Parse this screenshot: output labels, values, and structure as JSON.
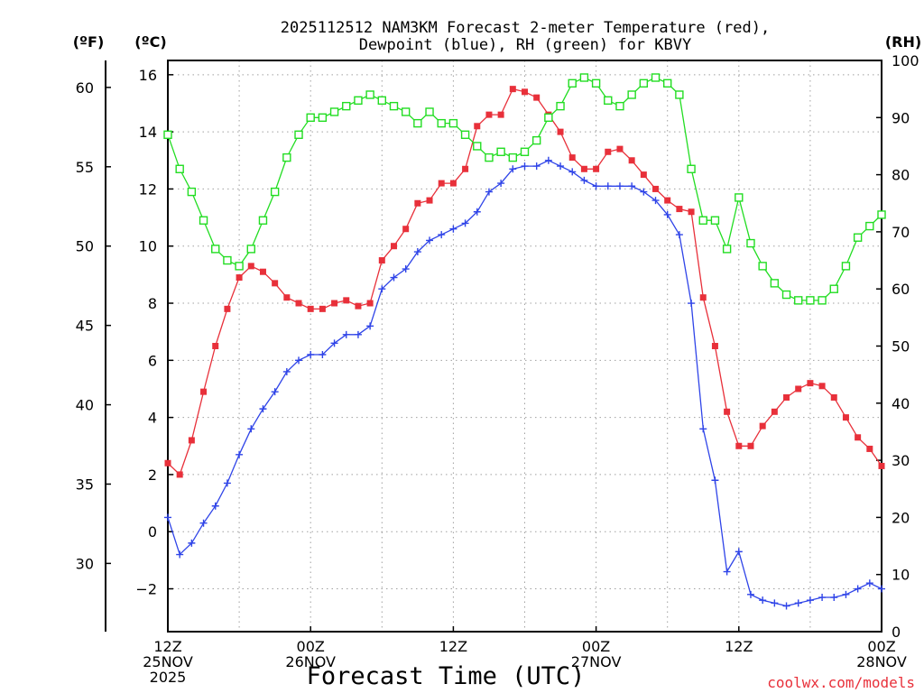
{
  "chart_data": {
    "type": "line",
    "title_lines": [
      "2025112512 NAM3KM Forecast 2-meter Temperature (red),",
      "Dewpoint (blue), RH (green) for KBVY"
    ],
    "xlabel": "Forecast Time (UTC)",
    "credit": "coolwx.com/models",
    "units": {
      "fahrenheit": "(ºF)",
      "celsius": "(ºC)",
      "rh": "(RH)"
    },
    "x_range_hours": [
      0,
      60
    ],
    "x_ticks": [
      {
        "hour": 0,
        "label_lines": [
          "12Z",
          "25NOV",
          "2025"
        ]
      },
      {
        "hour": 12,
        "label_lines": [
          "00Z",
          "26NOV"
        ]
      },
      {
        "hour": 24,
        "label_lines": [
          "12Z"
        ]
      },
      {
        "hour": 36,
        "label_lines": [
          "00Z",
          "27NOV"
        ]
      },
      {
        "hour": 48,
        "label_lines": [
          "12Z"
        ]
      },
      {
        "hour": 60,
        "label_lines": [
          "00Z",
          "28NOV"
        ]
      }
    ],
    "celsius_axis": {
      "range": [
        -3.5,
        16.5
      ],
      "ticks": [
        -2,
        0,
        2,
        4,
        6,
        8,
        10,
        12,
        14,
        16
      ],
      "tick_labels": [
        "−2",
        "0",
        "2",
        "4",
        "6",
        "8",
        "10",
        "12",
        "14",
        "16"
      ]
    },
    "fahrenheit_axis": {
      "ticks": [
        30,
        35,
        40,
        45,
        50,
        55,
        60
      ]
    },
    "rh_axis": {
      "range": [
        0,
        100
      ],
      "ticks": [
        0,
        10,
        20,
        30,
        40,
        50,
        60,
        70,
        80,
        90,
        100
      ]
    },
    "series": [
      {
        "name": "2-meter Temperature",
        "axis": "celsius",
        "color": "#e8303a",
        "marker": "filled-square",
        "values": [
          2.4,
          2.0,
          3.2,
          4.9,
          6.5,
          7.8,
          8.9,
          9.3,
          9.1,
          8.7,
          8.2,
          8.0,
          7.8,
          7.8,
          8.0,
          8.1,
          7.9,
          8.0,
          9.5,
          10.0,
          10.6,
          11.5,
          11.6,
          12.2,
          12.2,
          12.7,
          14.2,
          14.6,
          14.6,
          15.5,
          15.4,
          15.2,
          14.6,
          14.0,
          13.1,
          12.7,
          12.7,
          13.3,
          13.4,
          13.0,
          12.5,
          12.0,
          11.6,
          11.3,
          11.2,
          8.2,
          6.5,
          4.2,
          3.0,
          3.0,
          3.7,
          4.2,
          4.7,
          5.0,
          5.2,
          5.1,
          4.7,
          4.0,
          3.3,
          2.9,
          2.3
        ]
      },
      {
        "name": "Dewpoint",
        "axis": "celsius",
        "color": "#2f44e8",
        "marker": "plus",
        "values": [
          0.5,
          -0.8,
          -0.4,
          0.3,
          0.9,
          1.7,
          2.7,
          3.6,
          4.3,
          4.9,
          5.6,
          6.0,
          6.2,
          6.2,
          6.6,
          6.9,
          6.9,
          7.2,
          8.5,
          8.9,
          9.2,
          9.8,
          10.2,
          10.4,
          10.6,
          10.8,
          11.2,
          11.9,
          12.2,
          12.7,
          12.8,
          12.8,
          13.0,
          12.8,
          12.6,
          12.3,
          12.1,
          12.1,
          12.1,
          12.1,
          11.9,
          11.6,
          11.1,
          10.4,
          8.0,
          3.6,
          1.8,
          -1.4,
          -0.7,
          -2.2,
          -2.4,
          -2.5,
          -2.6,
          -2.5,
          -2.4,
          -2.3,
          -2.3,
          -2.2,
          -2.0,
          -1.8,
          -2.0
        ]
      },
      {
        "name": "RH",
        "axis": "rh",
        "color": "#22dd22",
        "marker": "open-square",
        "values": [
          87,
          81,
          77,
          72,
          67,
          65,
          64,
          67,
          72,
          77,
          83,
          87,
          90,
          90,
          91,
          92,
          93,
          94,
          93,
          92,
          91,
          89,
          91,
          89,
          89,
          87,
          85,
          83,
          84,
          83,
          84,
          86,
          90,
          92,
          96,
          97,
          96,
          93,
          92,
          94,
          96,
          97,
          96,
          94,
          81,
          72,
          72,
          67,
          76,
          68,
          64,
          61,
          59,
          58,
          58,
          58,
          60,
          64,
          69,
          71,
          73
        ]
      }
    ]
  }
}
